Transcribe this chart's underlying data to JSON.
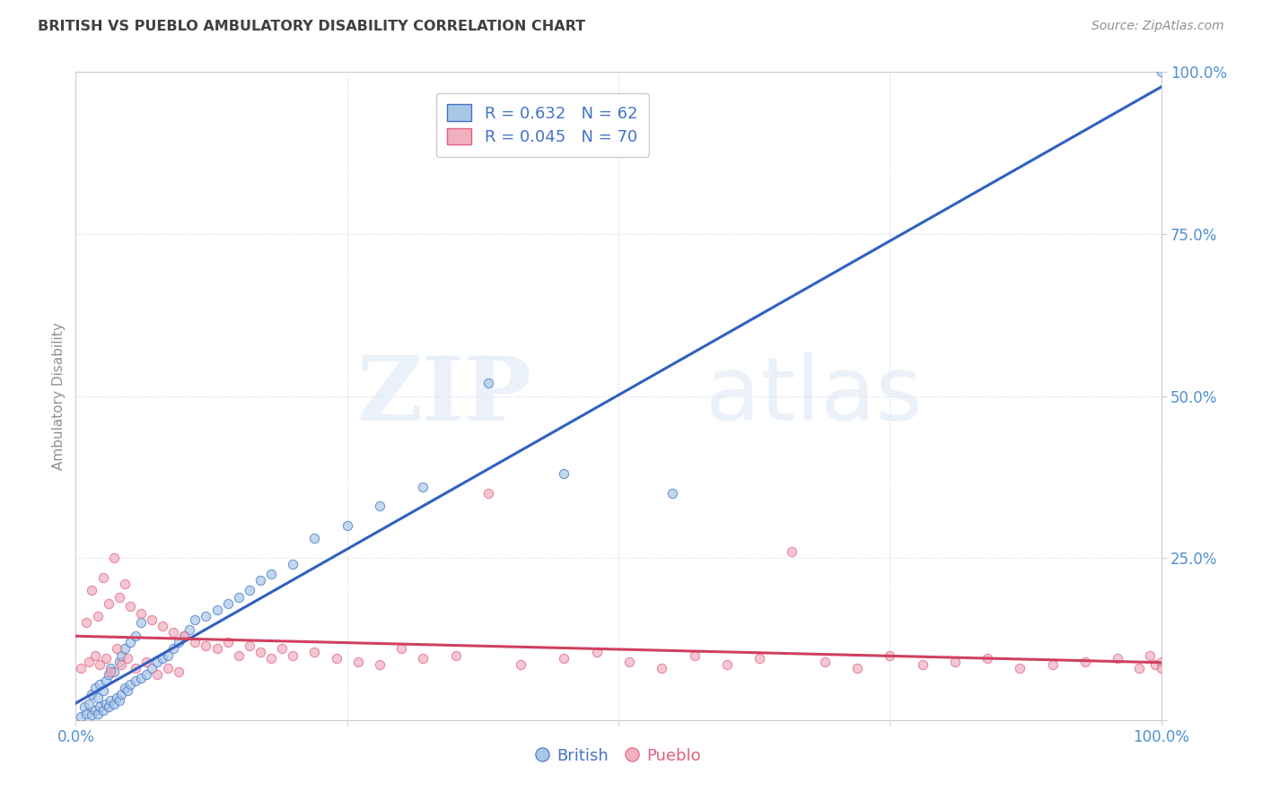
{
  "title": "BRITISH VS PUEBLO AMBULATORY DISABILITY CORRELATION CHART",
  "source_text": "Source: ZipAtlas.com",
  "ylabel": "Ambulatory Disability",
  "watermark_line1": "ZIP",
  "watermark_line2": "atlas",
  "british_R": 0.632,
  "british_N": 62,
  "pueblo_R": 0.045,
  "pueblo_N": 70,
  "british_color": "#a8c8e8",
  "pueblo_color": "#f0b0c0",
  "british_edge_color": "#4472c4",
  "pueblo_edge_color": "#e06080",
  "british_line_color": "#3060c0",
  "pueblo_line_color": "#d04060",
  "title_color": "#404040",
  "source_color": "#909090",
  "legend_text_color": "#4472c4",
  "axis_label_color": "#909090",
  "tick_label_color": "#5090d0",
  "grid_color": "#d0d8e8",
  "background_color": "#ffffff",
  "xlim": [
    0.0,
    1.0
  ],
  "ylim": [
    0.0,
    1.0
  ],
  "x_ticks": [
    0.0,
    0.25,
    0.5,
    0.75,
    1.0
  ],
  "x_tick_labels": [
    "0.0%",
    "",
    "",
    "",
    "100.0%"
  ],
  "y_ticks": [
    0.0,
    0.25,
    0.5,
    0.75,
    1.0
  ],
  "y_tick_labels": [
    "",
    "25.0%",
    "50.0%",
    "75.0%",
    "100.0%"
  ],
  "british_scatter_x": [
    0.005,
    0.008,
    0.01,
    0.012,
    0.015,
    0.015,
    0.018,
    0.018,
    0.02,
    0.02,
    0.022,
    0.022,
    0.025,
    0.025,
    0.028,
    0.028,
    0.03,
    0.03,
    0.032,
    0.032,
    0.035,
    0.035,
    0.038,
    0.04,
    0.04,
    0.042,
    0.042,
    0.045,
    0.045,
    0.048,
    0.05,
    0.05,
    0.055,
    0.055,
    0.06,
    0.06,
    0.065,
    0.07,
    0.075,
    0.08,
    0.085,
    0.09,
    0.095,
    0.1,
    0.105,
    0.11,
    0.12,
    0.13,
    0.14,
    0.15,
    0.16,
    0.17,
    0.18,
    0.2,
    0.22,
    0.25,
    0.28,
    0.32,
    0.38,
    0.45,
    0.55,
    1.0
  ],
  "british_scatter_y": [
    0.005,
    0.02,
    0.01,
    0.025,
    0.008,
    0.04,
    0.015,
    0.05,
    0.01,
    0.035,
    0.02,
    0.055,
    0.015,
    0.045,
    0.025,
    0.06,
    0.02,
    0.07,
    0.03,
    0.08,
    0.025,
    0.075,
    0.035,
    0.03,
    0.09,
    0.04,
    0.1,
    0.05,
    0.11,
    0.045,
    0.055,
    0.12,
    0.06,
    0.13,
    0.065,
    0.15,
    0.07,
    0.08,
    0.09,
    0.095,
    0.1,
    0.11,
    0.12,
    0.13,
    0.14,
    0.155,
    0.16,
    0.17,
    0.18,
    0.19,
    0.2,
    0.215,
    0.225,
    0.24,
    0.28,
    0.3,
    0.33,
    0.36,
    0.52,
    0.38,
    0.35,
    1.0
  ],
  "pueblo_scatter_x": [
    0.005,
    0.01,
    0.012,
    0.015,
    0.018,
    0.02,
    0.022,
    0.025,
    0.028,
    0.03,
    0.032,
    0.035,
    0.038,
    0.04,
    0.042,
    0.045,
    0.048,
    0.05,
    0.055,
    0.06,
    0.065,
    0.07,
    0.075,
    0.08,
    0.085,
    0.09,
    0.095,
    0.1,
    0.11,
    0.12,
    0.13,
    0.14,
    0.15,
    0.16,
    0.17,
    0.18,
    0.19,
    0.2,
    0.22,
    0.24,
    0.26,
    0.28,
    0.3,
    0.32,
    0.35,
    0.38,
    0.41,
    0.45,
    0.48,
    0.51,
    0.54,
    0.57,
    0.6,
    0.63,
    0.66,
    0.69,
    0.72,
    0.75,
    0.78,
    0.81,
    0.84,
    0.87,
    0.9,
    0.93,
    0.96,
    0.98,
    0.99,
    0.995,
    1.0,
    1.0
  ],
  "pueblo_scatter_y": [
    0.08,
    0.15,
    0.09,
    0.2,
    0.1,
    0.16,
    0.085,
    0.22,
    0.095,
    0.18,
    0.075,
    0.25,
    0.11,
    0.19,
    0.085,
    0.21,
    0.095,
    0.175,
    0.08,
    0.165,
    0.09,
    0.155,
    0.07,
    0.145,
    0.08,
    0.135,
    0.075,
    0.13,
    0.12,
    0.115,
    0.11,
    0.12,
    0.1,
    0.115,
    0.105,
    0.095,
    0.11,
    0.1,
    0.105,
    0.095,
    0.09,
    0.085,
    0.11,
    0.095,
    0.1,
    0.35,
    0.085,
    0.095,
    0.105,
    0.09,
    0.08,
    0.1,
    0.085,
    0.095,
    0.26,
    0.09,
    0.08,
    0.1,
    0.085,
    0.09,
    0.095,
    0.08,
    0.085,
    0.09,
    0.095,
    0.08,
    0.1,
    0.085,
    0.09,
    0.08
  ]
}
